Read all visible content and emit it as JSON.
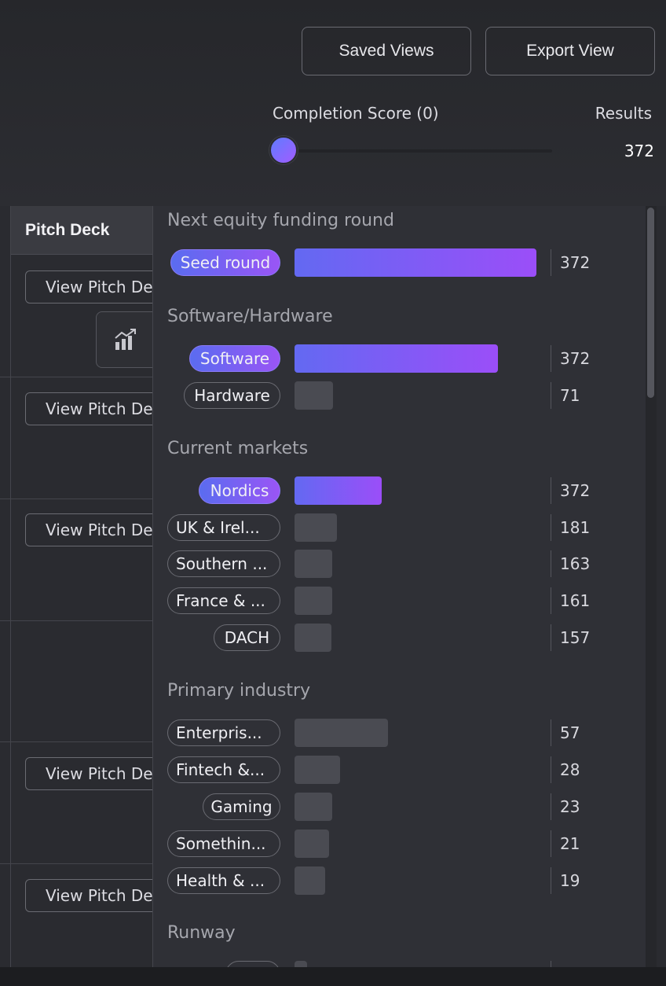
{
  "toolbar": {
    "saved_views_label": "Saved Views",
    "export_view_label": "Export View"
  },
  "filters": {
    "completion_score_label": "Completion Score (0)",
    "completion_score_value": 0,
    "results_label": "Results",
    "results_value": "372"
  },
  "table": {
    "column_header": "Pitch Deck",
    "row_button_label": "View Pitch Deck",
    "rows": 6
  },
  "facets": {
    "funding_round": {
      "title": "Next equity funding round",
      "items": [
        {
          "label": "Seed round",
          "count": "372",
          "active": true
        }
      ]
    },
    "software_hardware": {
      "title": "Software/Hardware",
      "items": [
        {
          "label": "Software",
          "count": "372",
          "active": true
        },
        {
          "label": "Hardware",
          "count": "71",
          "active": false
        }
      ]
    },
    "current_markets": {
      "title": "Current markets",
      "items": [
        {
          "label": "Nordics",
          "count": "372",
          "active": true
        },
        {
          "label": "UK & Irel...",
          "count": "181",
          "active": false
        },
        {
          "label": "Southern ...",
          "count": "163",
          "active": false
        },
        {
          "label": "France & ...",
          "count": "161",
          "active": false
        },
        {
          "label": "DACH",
          "count": "157",
          "active": false
        }
      ]
    },
    "primary_industry": {
      "title": "Primary industry",
      "items": [
        {
          "label": "Enterpris...",
          "count": "57",
          "active": false
        },
        {
          "label": "Fintech &...",
          "count": "28",
          "active": false
        },
        {
          "label": "Gaming",
          "count": "23",
          "active": false
        },
        {
          "label": "Somethin...",
          "count": "21",
          "active": false
        },
        {
          "label": "Health & ...",
          "count": "19",
          "active": false
        }
      ]
    },
    "runway": {
      "title": "Runway"
    }
  },
  "colors": {
    "accent_start": "#5f7cff",
    "accent_end": "#a25cff",
    "panel_bg": "#2f3036"
  },
  "icons": {
    "chart_button": "chart-trend-icon"
  }
}
